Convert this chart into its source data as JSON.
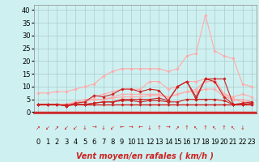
{
  "background_color": "#cff0f0",
  "grid_color": "#aacccc",
  "x_ticks": [
    0,
    1,
    2,
    3,
    4,
    5,
    6,
    7,
    8,
    9,
    10,
    11,
    12,
    13,
    14,
    15,
    16,
    17,
    18,
    19,
    20,
    21,
    22,
    23
  ],
  "y_ticks": [
    0,
    5,
    10,
    15,
    20,
    25,
    30,
    35,
    40
  ],
  "ylim": [
    -0.5,
    42
  ],
  "xlim": [
    -0.5,
    23.5
  ],
  "series": [
    {
      "x": [
        0,
        1,
        2,
        3,
        4,
        5,
        6,
        7,
        8,
        9,
        10,
        11,
        12,
        13,
        14,
        15,
        16,
        17,
        18,
        19,
        20,
        21,
        22,
        23
      ],
      "y": [
        7.5,
        7.5,
        8,
        8,
        9,
        10,
        11,
        14,
        16,
        17,
        17,
        17,
        17,
        17,
        16,
        17,
        22,
        23,
        38,
        24,
        22,
        21,
        11,
        10
      ],
      "color": "#ffaaaa",
      "linewidth": 0.8,
      "markersize": 1.8,
      "zorder": 2
    },
    {
      "x": [
        0,
        1,
        2,
        3,
        4,
        5,
        6,
        7,
        8,
        9,
        10,
        11,
        12,
        13,
        14,
        15,
        16,
        17,
        18,
        19,
        20,
        21,
        22,
        23
      ],
      "y": [
        3,
        3,
        3,
        3,
        4,
        4,
        6,
        7,
        8,
        9,
        9,
        9,
        12,
        12,
        9,
        10,
        12,
        12,
        13,
        13,
        7,
        6,
        7,
        6
      ],
      "color": "#ffaaaa",
      "linewidth": 0.8,
      "markersize": 1.8,
      "zorder": 2
    },
    {
      "x": [
        0,
        1,
        2,
        3,
        4,
        5,
        6,
        7,
        8,
        9,
        10,
        11,
        12,
        13,
        14,
        15,
        16,
        17,
        18,
        19,
        20,
        21,
        22,
        23
      ],
      "y": [
        3,
        3,
        3,
        3,
        4,
        5,
        5,
        5,
        6,
        7,
        7,
        7,
        7,
        7,
        6,
        7,
        8,
        9,
        12,
        12,
        7,
        5,
        5,
        4
      ],
      "color": "#ffaaaa",
      "linewidth": 0.8,
      "markersize": 1.8,
      "zorder": 2
    },
    {
      "x": [
        0,
        1,
        2,
        3,
        4,
        5,
        6,
        7,
        8,
        9,
        10,
        11,
        12,
        13,
        14,
        15,
        16,
        17,
        18,
        19,
        20,
        21,
        22,
        23
      ],
      "y": [
        3,
        3,
        3,
        3,
        3.5,
        4,
        5,
        5,
        5.5,
        6,
        6,
        6,
        6.5,
        6.5,
        6,
        7,
        8,
        8,
        9,
        9,
        6,
        5,
        4,
        4
      ],
      "color": "#ffaaaa",
      "linewidth": 0.8,
      "markersize": 1.8,
      "zorder": 2
    },
    {
      "x": [
        0,
        1,
        2,
        3,
        4,
        5,
        6,
        7,
        8,
        9,
        10,
        11,
        12,
        13,
        14,
        15,
        16,
        17,
        18,
        19,
        20,
        21,
        22,
        23
      ],
      "y": [
        3,
        3,
        3,
        2.5,
        3,
        3,
        3.5,
        4,
        4,
        4.5,
        4.5,
        4,
        4.5,
        4.5,
        4,
        4,
        5,
        5,
        5,
        5,
        4.5,
        3,
        3,
        3
      ],
      "color": "#cc2222",
      "linewidth": 0.8,
      "markersize": 1.8,
      "zorder": 3
    },
    {
      "x": [
        0,
        1,
        2,
        3,
        4,
        5,
        6,
        7,
        8,
        9,
        10,
        11,
        12,
        13,
        14,
        15,
        16,
        17,
        18,
        19,
        20,
        21,
        22,
        23
      ],
      "y": [
        3,
        3,
        3,
        2.5,
        3,
        3,
        3.5,
        4,
        4,
        5,
        5,
        5,
        5,
        5.5,
        4.5,
        10,
        12,
        6,
        13,
        12,
        6,
        3,
        3,
        3.5
      ],
      "color": "#cc2222",
      "linewidth": 0.8,
      "markersize": 1.8,
      "zorder": 3
    },
    {
      "x": [
        0,
        1,
        2,
        3,
        4,
        5,
        6,
        7,
        8,
        9,
        10,
        11,
        12,
        13,
        14,
        15,
        16,
        17,
        18,
        19,
        20,
        21,
        22,
        23
      ],
      "y": [
        3,
        3,
        3,
        2.5,
        3.5,
        4,
        6.5,
        6,
        7,
        9,
        9,
        8,
        9,
        8.5,
        4.5,
        10,
        12,
        5,
        13,
        13,
        13,
        3,
        3.5,
        4
      ],
      "color": "#cc2222",
      "linewidth": 0.8,
      "markersize": 1.8,
      "zorder": 3
    },
    {
      "x": [
        0,
        1,
        2,
        3,
        4,
        5,
        6,
        7,
        8,
        9,
        10,
        11,
        12,
        13,
        14,
        15,
        16,
        17,
        18,
        19,
        20,
        21,
        22,
        23
      ],
      "y": [
        3,
        3,
        3,
        3,
        3,
        3,
        3,
        3,
        3,
        3,
        3,
        3,
        3,
        3,
        3,
        3,
        3,
        3,
        3,
        3,
        3,
        3,
        3,
        3
      ],
      "color": "#cc2222",
      "linewidth": 1.0,
      "markersize": 1.8,
      "zorder": 3
    }
  ],
  "wind_arrows": [
    "↗",
    "↙",
    "↗",
    "↙",
    "↙",
    "↓",
    "→",
    "↓",
    "↙",
    "←",
    "→",
    "←",
    "↓",
    "↑",
    "→",
    "↗",
    "↑",
    "↖",
    "↑",
    "↖",
    "↑",
    "↖",
    "↓",
    ""
  ],
  "xlabel": "Vent moyen/en rafales ( km/h )",
  "xlabel_fontsize": 7,
  "tick_fontsize": 6,
  "arrow_fontsize": 5
}
